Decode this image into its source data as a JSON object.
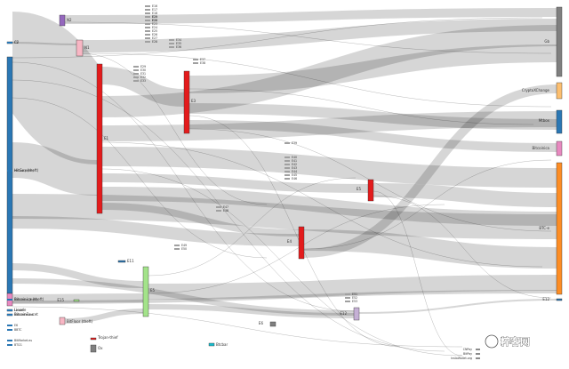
{
  "colors": {
    "blue": "#2a77b4",
    "red": "#e31b1c",
    "green": "#a3e38a",
    "pink": "#e889c0",
    "purple": "#9467bd",
    "orange": "#fd8d24",
    "lightorange": "#fdbf6f",
    "gray": "#7f7f7f",
    "teal": "#17becf",
    "lightpink": "#f8b6c4",
    "lavender": "#c5b0d5"
  },
  "nodes": [
    {
      "id": "C2",
      "label": "C2",
      "color": "#2a77b4"
    },
    {
      "id": "N2",
      "label": "N2",
      "color": "#9467bd"
    },
    {
      "id": "N1",
      "label": "N1",
      "color": "#f8b6c4"
    },
    {
      "id": "HitBTC_left",
      "label": "HitGox (theft)",
      "color": "#2a77b4"
    },
    {
      "id": "E1",
      "label": "E1",
      "color": "#e31b1c"
    },
    {
      "id": "E3",
      "label": "E3",
      "color": "#e31b1c"
    },
    {
      "id": "E4",
      "label": "E4",
      "color": "#e31b1c"
    },
    {
      "id": "E5",
      "label": "E5",
      "color": "#e31b1c"
    },
    {
      "id": "E6",
      "label": "E6",
      "color": "#e31b1c"
    },
    {
      "id": "E5b",
      "label": "E5",
      "color": "#a3e38a"
    },
    {
      "id": "E11",
      "label": "E11",
      "color": "#2a77b4"
    },
    {
      "id": "E12",
      "label": "E12",
      "color": "#c5b0d5"
    },
    {
      "id": "Bitcoinica",
      "label": "Bitcoinica (theft)",
      "color": "#e889c0"
    },
    {
      "id": "BitFloor",
      "label": "BitFloor (theft)",
      "color": "#f8b6c4"
    },
    {
      "id": "Linode",
      "label": "Linode",
      "color": "#7f7f7f"
    },
    {
      "id": "BitcoinFaucet",
      "label": "BitcoinFaucet",
      "color": "#2a77b4"
    },
    {
      "id": "Ox",
      "label": "Ox",
      "color": "#7f7f7f"
    },
    {
      "id": "Trojan",
      "label": "Trojan-thief",
      "color": "#e31b1c"
    },
    {
      "id": "E15",
      "label": "E15",
      "color": "#a3e38a"
    },
    {
      "id": "Gb",
      "label": "Gb",
      "color": "#7f7f7f"
    },
    {
      "id": "ObjectiveC",
      "label": "CryptoXChange",
      "color": "#fdbf6f"
    },
    {
      "id": "Mtbox",
      "label": "Mtbox",
      "color": "#2a77b4"
    },
    {
      "id": "Bitcoinica_r",
      "label": "Bitcoinica",
      "color": "#e889c0"
    },
    {
      "id": "BTCe",
      "label": "BTC-e",
      "color": "#fd8d24"
    },
    {
      "id": "E12r",
      "label": "E12",
      "color": "#2a77b4"
    },
    {
      "id": "Btcbar",
      "label": "Btcbar",
      "color": "#17becf"
    },
    {
      "id": "E6c",
      "label": "E6",
      "color": "#7f7f7f"
    }
  ],
  "left_labels": [
    "C2",
    "HitGox (theft)",
    "Bitcoinica (theft)",
    "Linode",
    "BitcoinFaucet",
    "E6",
    "BBTC",
    "BitMarket.eu",
    "BTCG"
  ],
  "mid_labels": [
    "E16",
    "E17",
    "E18",
    "E19",
    "E20",
    "E21",
    "E22",
    "E23",
    "E24",
    "E25",
    "E26",
    "E27",
    "E28",
    "E29",
    "E30",
    "E31",
    "E32",
    "E33",
    "E34",
    "E35",
    "E36",
    "E37",
    "E38",
    "E39",
    "E40",
    "E41",
    "E42",
    "E43",
    "E44",
    "E45",
    "E46",
    "E47",
    "E48",
    "E49",
    "E50",
    "E51",
    "E52",
    "E53"
  ],
  "right_bottom_labels": [
    "CNPay",
    "BitPay",
    "InstaWallet.org"
  ],
  "watermark": "粹客网"
}
